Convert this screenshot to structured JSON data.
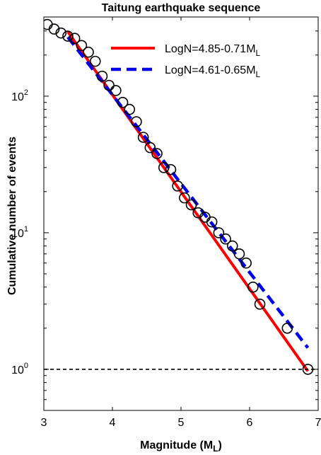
{
  "chart_data": {
    "type": "scatter",
    "title": "Taitung earthquake sequence",
    "xlabel": "Magnitude (M",
    "xlabel_sub": "L",
    "xlabel_end": ")",
    "ylabel": "Cumulative number of events",
    "xlim": [
      3,
      7
    ],
    "ylim": [
      0.5,
      380
    ],
    "y_scale": "log",
    "x_ticks": [
      "3",
      "4",
      "5",
      "6",
      "7"
    ],
    "x_tick_values": [
      3,
      4,
      5,
      6,
      7
    ],
    "y_ticks": [
      {
        "value": 1,
        "base": "10",
        "exp": "0"
      },
      {
        "value": 10,
        "base": "10",
        "exp": "1"
      },
      {
        "value": 100,
        "base": "10",
        "exp": "2"
      }
    ],
    "grid": false,
    "legend_position": "top-right",
    "series": [
      {
        "name": "",
        "kind": "scatter",
        "marker": "open-circle",
        "color": "#000000",
        "points": [
          [
            3.05,
            335
          ],
          [
            3.15,
            310
          ],
          [
            3.25,
            290
          ],
          [
            3.35,
            275
          ],
          [
            3.45,
            265
          ],
          [
            3.55,
            235
          ],
          [
            3.65,
            210
          ],
          [
            3.75,
            180
          ],
          [
            3.85,
            140
          ],
          [
            3.95,
            120
          ],
          [
            4.05,
            110
          ],
          [
            4.15,
            90
          ],
          [
            4.25,
            80
          ],
          [
            4.35,
            65
          ],
          [
            4.45,
            50
          ],
          [
            4.55,
            42
          ],
          [
            4.65,
            38
          ],
          [
            4.75,
            30
          ],
          [
            4.85,
            29
          ],
          [
            4.95,
            22
          ],
          [
            5.05,
            18
          ],
          [
            5.15,
            16
          ],
          [
            5.25,
            14
          ],
          [
            5.35,
            13
          ],
          [
            5.45,
            12
          ],
          [
            5.55,
            10
          ],
          [
            5.65,
            9
          ],
          [
            5.75,
            8
          ],
          [
            5.85,
            7
          ],
          [
            5.95,
            6
          ],
          [
            6.05,
            4
          ],
          [
            6.15,
            3
          ],
          [
            6.55,
            2
          ],
          [
            6.85,
            1
          ]
        ]
      },
      {
        "name": "LogN=4.85-0.71M",
        "name_sub": "L",
        "kind": "line",
        "style": "solid",
        "color": "#ff0000",
        "intercept": 4.85,
        "slope": -0.71,
        "x_range": [
          3.35,
          6.85
        ]
      },
      {
        "name": "LogN=4.61-0.65M",
        "name_sub": "L",
        "kind": "line",
        "style": "dashed",
        "color": "#0000ee",
        "intercept": 4.61,
        "slope": -0.65,
        "x_range": [
          3.35,
          6.85
        ]
      },
      {
        "name": "",
        "kind": "hline",
        "style": "dashed",
        "color": "#000000",
        "y": 1
      }
    ]
  }
}
